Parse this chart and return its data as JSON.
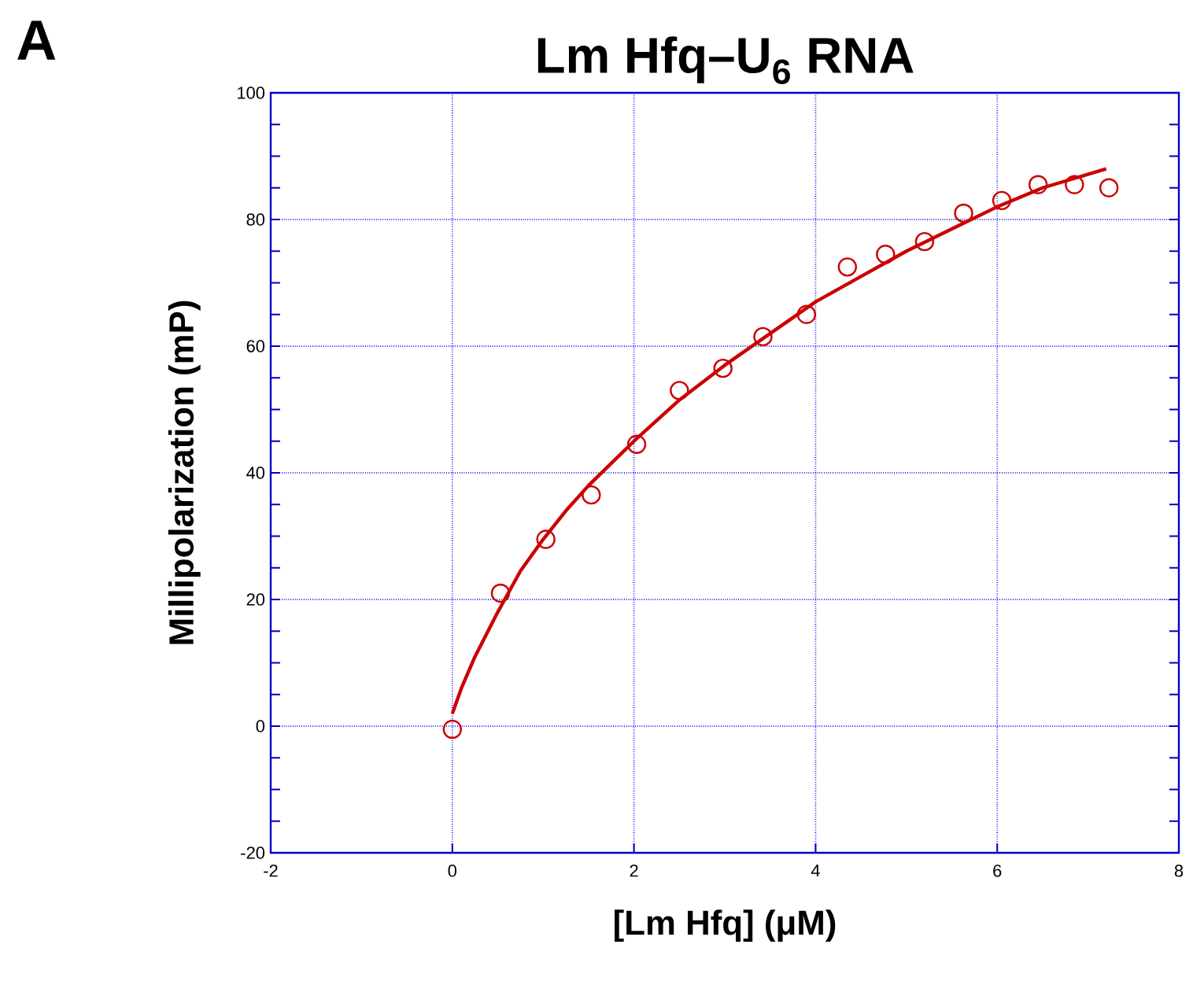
{
  "chart_data": {
    "type": "scatter",
    "title": "Lm Hfq–U$_{6}$ RNA",
    "xlabel": "[Lm Hfq] (μM)",
    "ylabel": "Millipolarization (mP)",
    "annotations": [
      "A"
    ],
    "xlim": [
      -2,
      8
    ],
    "xticks": [
      -2,
      0,
      2,
      4,
      6,
      8
    ],
    "ylim": [
      -20,
      100
    ],
    "yticks": [
      -20,
      0,
      20,
      40,
      60,
      80,
      100
    ],
    "grid": true,
    "marker": "circle",
    "series": [
      {
        "color": "#cc0000",
        "x": [
          0,
          0.53,
          1.03,
          1.53,
          2.03,
          2.5,
          2.98,
          3.42,
          3.9,
          4.35,
          4.77,
          5.2,
          5.63,
          6.05,
          6.45,
          6.85,
          7.23
        ],
        "values": [
          -0.5,
          21,
          29.5,
          36.5,
          44.5,
          53,
          56.5,
          61.5,
          65,
          72.5,
          74.5,
          76.5,
          81,
          83,
          85.5,
          85.5,
          85
        ]
      },
      {
        "type": "line",
        "color": "#cc0000",
        "marker": "none",
        "line_style": "solid",
        "x": [
          0,
          0.1,
          0.25,
          0.5,
          0.75,
          1,
          1.25,
          1.5,
          2,
          2.5,
          3,
          3.5,
          4,
          4.5,
          5,
          5.5,
          6,
          6.5,
          7.2
        ],
        "values": [
          2,
          6,
          11,
          18,
          24.5,
          29.5,
          34,
          38,
          45,
          51.5,
          57,
          62,
          67,
          71,
          75,
          78.5,
          82,
          85,
          88
        ]
      }
    ]
  }
}
